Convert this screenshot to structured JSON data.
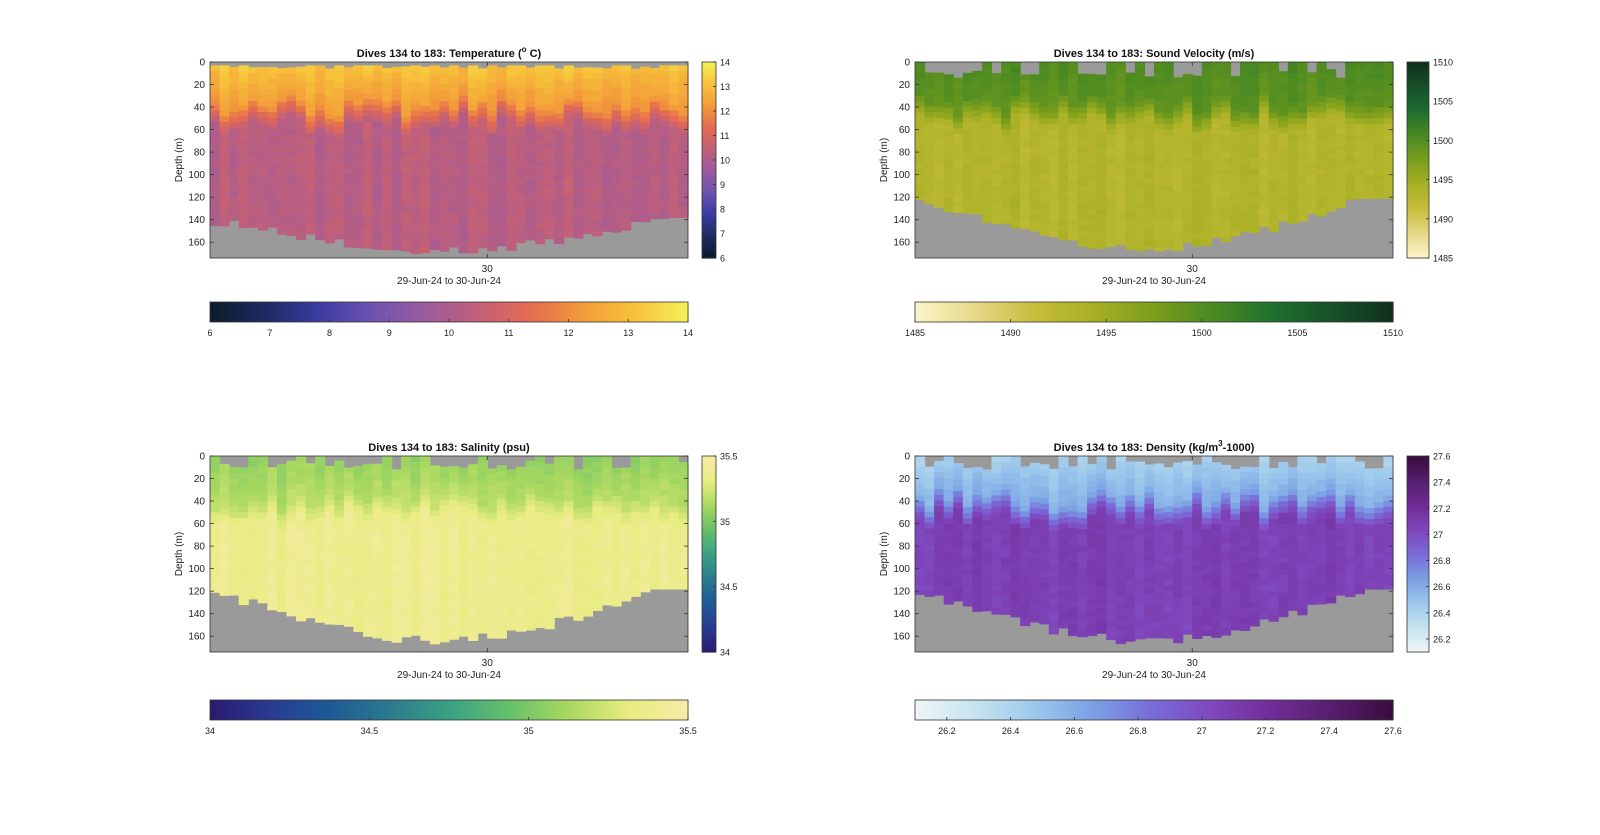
{
  "chart_data": [
    {
      "type": "heatmap",
      "title": "Dives 134 to 183: Temperature (",
      "title_sup": "o",
      "title_end": " C)",
      "xlabel": "29-Jun-24 to 30-Jun-24",
      "ylabel": "Depth (m)",
      "x_tick_labels": [
        "30"
      ],
      "x_tick_fraction": [
        0.58
      ],
      "y_ticks": [
        0,
        20,
        40,
        60,
        80,
        100,
        120,
        140,
        160
      ],
      "ylim": [
        0,
        174
      ],
      "y_reversed": true,
      "n_dives": 50,
      "colormap": [
        "#0b1b2c",
        "#1b2a5e",
        "#3a3aa0",
        "#6a52b0",
        "#9a5aa0",
        "#c0607a",
        "#e46a52",
        "#f29a3a",
        "#f7c23a",
        "#f3f05a"
      ],
      "colorbar_range": [
        6,
        14
      ],
      "colorbar_ticks": [
        6,
        7,
        8,
        9,
        10,
        11,
        12,
        13,
        14
      ],
      "profile": {
        "surface": 13.2,
        "mid": 12.3,
        "deep": 10.3,
        "thermocline_m": 45
      },
      "top_missing_m": [
        3,
        6
      ],
      "bottom_depth_m": [
        142,
        170
      ],
      "bottom_trend": "bowl",
      "nan_color": "#9a9a9a"
    },
    {
      "type": "heatmap",
      "title": "Dives 134 to 183: Sound Velocity (m/s)",
      "title_sup": "",
      "title_end": "",
      "xlabel": "29-Jun-24 to 30-Jun-24",
      "ylabel": "Depth (m)",
      "x_tick_labels": [
        "30"
      ],
      "x_tick_fraction": [
        0.58
      ],
      "y_ticks": [
        0,
        20,
        40,
        60,
        80,
        100,
        120,
        140,
        160
      ],
      "ylim": [
        0,
        174
      ],
      "y_reversed": true,
      "n_dives": 50,
      "colormap": [
        "#fcf5c8",
        "#e6d98a",
        "#c8bd3c",
        "#a8b024",
        "#7a9e1c",
        "#4a8a22",
        "#1f6f30",
        "#17502a",
        "#10301c"
      ],
      "colorbar_range": [
        1485,
        1510
      ],
      "colorbar_ticks": [
        1485,
        1490,
        1495,
        1500,
        1505,
        1510
      ],
      "profile": {
        "surface": 1500.2,
        "mid": 1499.3,
        "deep": 1493.2,
        "thermocline_m": 45
      },
      "top_missing_m": [
        0,
        14
      ],
      "bottom_depth_m": [
        125,
        170
      ],
      "bottom_trend": "bowl",
      "nan_color": "#9a9a9a"
    },
    {
      "type": "heatmap",
      "title": "Dives 134 to 183: Salinity (psu)",
      "title_sup": "",
      "title_end": "",
      "xlabel": "29-Jun-24 to 30-Jun-24",
      "ylabel": "Depth (m)",
      "x_tick_labels": [
        "30"
      ],
      "x_tick_fraction": [
        0.58
      ],
      "y_ticks": [
        0,
        20,
        40,
        60,
        80,
        100,
        120,
        140,
        160
      ],
      "ylim": [
        0,
        174
      ],
      "y_reversed": true,
      "n_dives": 50,
      "colormap": [
        "#2a1a6e",
        "#2a3a92",
        "#1e5a96",
        "#2b7a90",
        "#3aa084",
        "#66c06a",
        "#a8d860",
        "#e8ec80",
        "#f6eca8"
      ],
      "colorbar_range": [
        34,
        35.5
      ],
      "colorbar_ticks": [
        34,
        34.5,
        35,
        35.5
      ],
      "profile": {
        "surface": 35.08,
        "mid": 35.17,
        "deep": 35.38,
        "thermocline_m": 45
      },
      "top_missing_m": [
        0,
        12
      ],
      "bottom_depth_m": [
        122,
        168
      ],
      "bottom_trend": "bowl",
      "nan_color": "#9a9a9a"
    },
    {
      "type": "heatmap",
      "title": "Dives 134 to 183: Density (kg/m",
      "title_sup": "3",
      "title_end": "-1000)",
      "xlabel": "29-Jun-24 to 30-Jun-24",
      "ylabel": "Depth (m)",
      "x_tick_labels": [
        "30"
      ],
      "x_tick_fraction": [
        0.58
      ],
      "y_ticks": [
        0,
        20,
        40,
        60,
        80,
        100,
        120,
        140,
        160
      ],
      "ylim": [
        0,
        174
      ],
      "y_reversed": true,
      "n_dives": 50,
      "colormap": [
        "#eef6f6",
        "#c6e4ee",
        "#9cc8ec",
        "#7aa0e4",
        "#7a6ad8",
        "#8046bc",
        "#702c96",
        "#561e6e",
        "#3a0c3e"
      ],
      "colorbar_range": [
        26.1,
        27.6
      ],
      "colorbar_ticks": [
        26.2,
        26.4,
        26.6,
        26.8,
        27,
        27.2,
        27.4,
        27.6
      ],
      "profile": {
        "surface": 26.42,
        "mid": 26.6,
        "deep": 27.08,
        "thermocline_m": 45
      },
      "top_missing_m": [
        0,
        12
      ],
      "bottom_depth_m": [
        122,
        168
      ],
      "bottom_trend": "bowl",
      "nan_color": "#9a9a9a"
    }
  ]
}
